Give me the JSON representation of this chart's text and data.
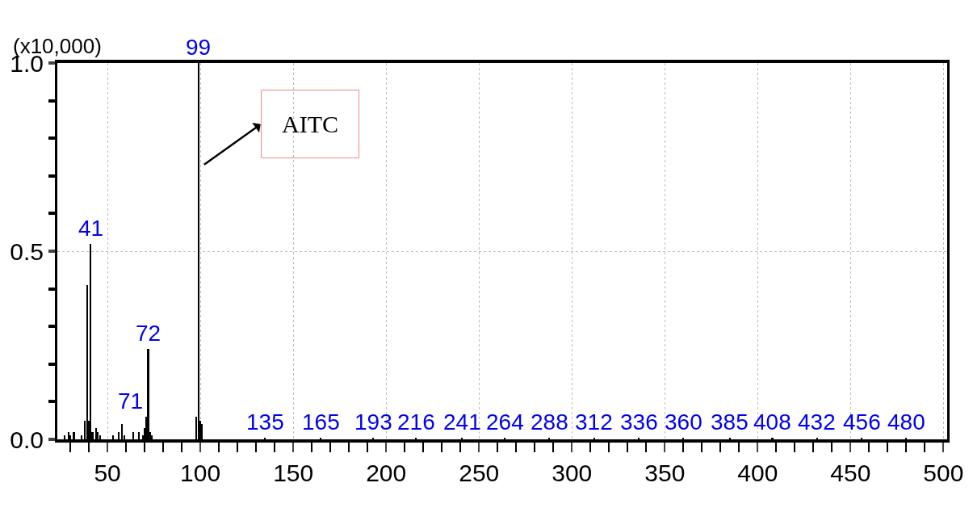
{
  "chart_data": {
    "type": "bar",
    "ylabel": "(x10,000)",
    "x": [
      27,
      29,
      30,
      32,
      36,
      38,
      39,
      40,
      41,
      42,
      44,
      45,
      46,
      53,
      56,
      58,
      59,
      64,
      67,
      69,
      70,
      71,
      72,
      73,
      74,
      98,
      99,
      100,
      101,
      135,
      165,
      193,
      216,
      241,
      264,
      288,
      312,
      336,
      360,
      385,
      408,
      432,
      456,
      480
    ],
    "values": [
      0.01,
      0.02,
      0.01,
      0.02,
      0.01,
      0.05,
      0.41,
      0.05,
      0.52,
      0.02,
      0.03,
      0.02,
      0.01,
      0.01,
      0.02,
      0.04,
      0.01,
      0.02,
      0.02,
      0.01,
      0.03,
      0.06,
      0.24,
      0.02,
      0.01,
      0.06,
      1.0,
      0.05,
      0.04,
      0.005,
      0.005,
      0.005,
      0.005,
      0.005,
      0.005,
      0.005,
      0.005,
      0.005,
      0.005,
      0.005,
      0.005,
      0.005,
      0.005,
      0.005
    ],
    "color": "#000000",
    "xlim": [
      23,
      502
    ],
    "xticks": [
      {
        "value": 30,
        "label": null
      },
      {
        "value": 40,
        "label": null
      },
      50,
      {
        "value": 60,
        "label": null
      },
      {
        "value": 70,
        "label": null
      },
      {
        "value": 80,
        "label": null
      },
      {
        "value": 90,
        "label": null
      },
      100,
      {
        "value": 110,
        "label": null
      },
      {
        "value": 120,
        "label": null
      },
      {
        "value": 130,
        "label": null
      },
      {
        "value": 140,
        "label": null
      },
      150,
      {
        "value": 160,
        "label": null
      },
      {
        "value": 170,
        "label": null
      },
      {
        "value": 180,
        "label": null
      },
      {
        "value": 190,
        "label": null
      },
      200,
      {
        "value": 210,
        "label": null
      },
      {
        "value": 220,
        "label": null
      },
      {
        "value": 230,
        "label": null
      },
      {
        "value": 240,
        "label": null
      },
      250,
      {
        "value": 260,
        "label": null
      },
      {
        "value": 270,
        "label": null
      },
      {
        "value": 280,
        "label": null
      },
      {
        "value": 290,
        "label": null
      },
      300,
      {
        "value": 310,
        "label": null
      },
      {
        "value": 320,
        "label": null
      },
      {
        "value": 330,
        "label": null
      },
      {
        "value": 340,
        "label": null
      },
      350,
      {
        "value": 360,
        "label": null
      },
      {
        "value": 370,
        "label": null
      },
      {
        "value": 380,
        "label": null
      },
      {
        "value": 390,
        "label": null
      },
      400,
      {
        "value": 410,
        "label": null
      },
      {
        "value": 420,
        "label": null
      },
      {
        "value": 430,
        "label": null
      },
      {
        "value": 440,
        "label": null
      },
      450,
      {
        "value": 460,
        "label": null
      },
      {
        "value": 470,
        "label": null
      },
      {
        "value": 480,
        "label": null
      },
      {
        "value": 490,
        "label": null
      },
      500
    ],
    "ylim": [
      0,
      1.0
    ],
    "yticks": [
      {
        "value": 0,
        "label": "0.0"
      },
      {
        "value": 0.1,
        "label": null
      },
      {
        "value": 0.2,
        "label": null
      },
      {
        "value": 0.3,
        "label": null
      },
      {
        "value": 0.4,
        "label": null
      },
      0.5,
      {
        "value": 0.6,
        "label": null
      },
      {
        "value": 0.7,
        "label": null
      },
      {
        "value": 0.8,
        "label": null
      },
      {
        "value": 0.9,
        "label": null
      },
      {
        "value": 1.0,
        "label": "1.0"
      }
    ],
    "grid": true,
    "annotations": [
      {
        "text": "99",
        "x": 99,
        "y": 1.0
      },
      {
        "text": "41",
        "x": 41,
        "y": 0.52
      },
      {
        "text": "72",
        "x": 72,
        "y": 0.24
      },
      {
        "text": "71",
        "x": 71,
        "y": 0.06
      },
      {
        "text": "135",
        "x": 135,
        "y": 0.005
      },
      {
        "text": "165",
        "x": 165,
        "y": 0.005
      },
      {
        "text": "193",
        "x": 193,
        "y": 0.005
      },
      {
        "text": "216",
        "x": 216,
        "y": 0.005
      },
      {
        "text": "241",
        "x": 241,
        "y": 0.005
      },
      {
        "text": "264",
        "x": 264,
        "y": 0.005
      },
      {
        "text": "288",
        "x": 288,
        "y": 0.005
      },
      {
        "text": "312",
        "x": 312,
        "y": 0.005
      },
      {
        "text": "336",
        "x": 336,
        "y": 0.005
      },
      {
        "text": "360",
        "x": 360,
        "y": 0.005
      },
      {
        "text": "385",
        "x": 385,
        "y": 0.005
      },
      {
        "text": "408",
        "x": 408,
        "y": 0.005
      },
      {
        "text": "432",
        "x": 432,
        "y": 0.005
      },
      {
        "text": "456",
        "x": 456,
        "y": 0.005
      },
      {
        "text": "480",
        "x": 480,
        "y": 0.005
      },
      "AITC"
    ]
  }
}
